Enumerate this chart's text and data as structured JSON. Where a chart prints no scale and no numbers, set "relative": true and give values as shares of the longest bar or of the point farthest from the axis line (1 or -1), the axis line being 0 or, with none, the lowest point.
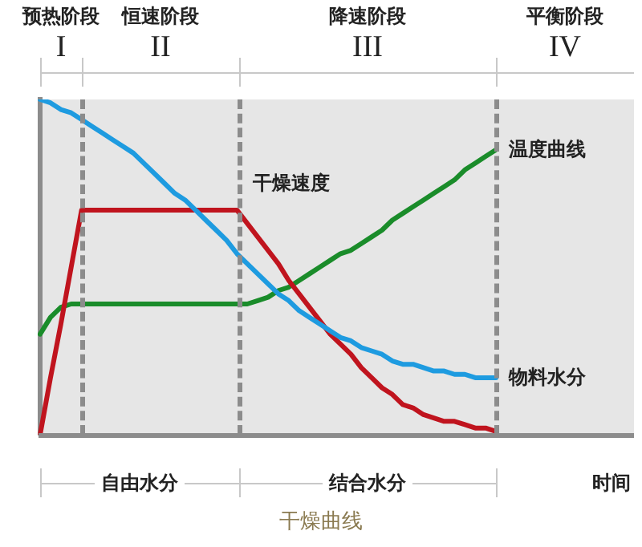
{
  "chart_data": {
    "type": "line",
    "relative": true,
    "title": "干燥曲线",
    "categories": [
      null,
      null,
      null,
      null,
      null,
      null,
      null,
      null,
      null,
      null,
      null,
      null,
      null,
      null,
      null,
      null,
      null,
      null,
      null,
      null,
      null,
      null,
      null,
      null,
      null,
      null,
      null,
      null,
      null,
      null,
      null,
      null,
      null,
      null,
      null,
      null,
      null,
      null,
      null,
      null,
      null,
      null,
      null,
      null,
      null
    ],
    "grid": false,
    "legend": false,
    "marker": "none",
    "line_style": "solid",
    "series": [
      {
        "name": "物料水分",
        "color": "#1e9be0",
        "values": [
          1.0,
          0.99,
          0.97,
          0.96,
          0.94,
          0.92,
          0.9,
          0.88,
          0.86,
          0.84,
          0.81,
          0.78,
          0.75,
          0.72,
          0.7,
          0.67,
          0.64,
          0.61,
          0.58,
          0.54,
          0.51,
          0.48,
          0.45,
          0.42,
          0.4,
          0.37,
          0.35,
          0.33,
          0.31,
          0.29,
          0.28,
          0.26,
          0.25,
          0.24,
          0.22,
          0.21,
          0.21,
          0.2,
          0.19,
          0.19,
          0.18,
          0.18,
          0.17,
          0.17,
          0.17
        ]
      },
      {
        "name": "干燥速度",
        "color": "#c0141e",
        "values": [
          0,
          0.17,
          0.33,
          0.5,
          0.67,
          0.67,
          0.67,
          0.67,
          0.67,
          0.67,
          0.67,
          0.67,
          0.67,
          0.67,
          0.67,
          0.67,
          0.67,
          0.67,
          0.67,
          0.67,
          0.63,
          0.59,
          0.55,
          0.51,
          0.46,
          0.42,
          0.38,
          0.34,
          0.3,
          0.27,
          0.24,
          0.2,
          0.17,
          0.14,
          0.12,
          0.09,
          0.08,
          0.06,
          0.05,
          0.04,
          0.04,
          0.03,
          0.02,
          0.02,
          0.01
        ]
      },
      {
        "name": "温度曲线",
        "color": "#1a8c2a",
        "values": [
          0.3,
          0.35,
          0.38,
          0.39,
          0.39,
          0.39,
          0.39,
          0.39,
          0.39,
          0.39,
          0.39,
          0.39,
          0.39,
          0.39,
          0.39,
          0.39,
          0.39,
          0.39,
          0.39,
          0.39,
          0.39,
          0.4,
          0.41,
          0.43,
          0.44,
          0.46,
          0.48,
          0.5,
          0.52,
          0.54,
          0.55,
          0.57,
          0.59,
          0.61,
          0.64,
          0.66,
          0.68,
          0.7,
          0.72,
          0.74,
          0.76,
          0.79,
          0.81,
          0.83,
          0.85
        ]
      }
    ],
    "annotations": [
      "预热阶段",
      "恒速阶段",
      "降速阶段",
      "平衡阶段",
      "I",
      "II",
      "III",
      "IV",
      "自由水分",
      "结合水分",
      "时间"
    ]
  }
}
